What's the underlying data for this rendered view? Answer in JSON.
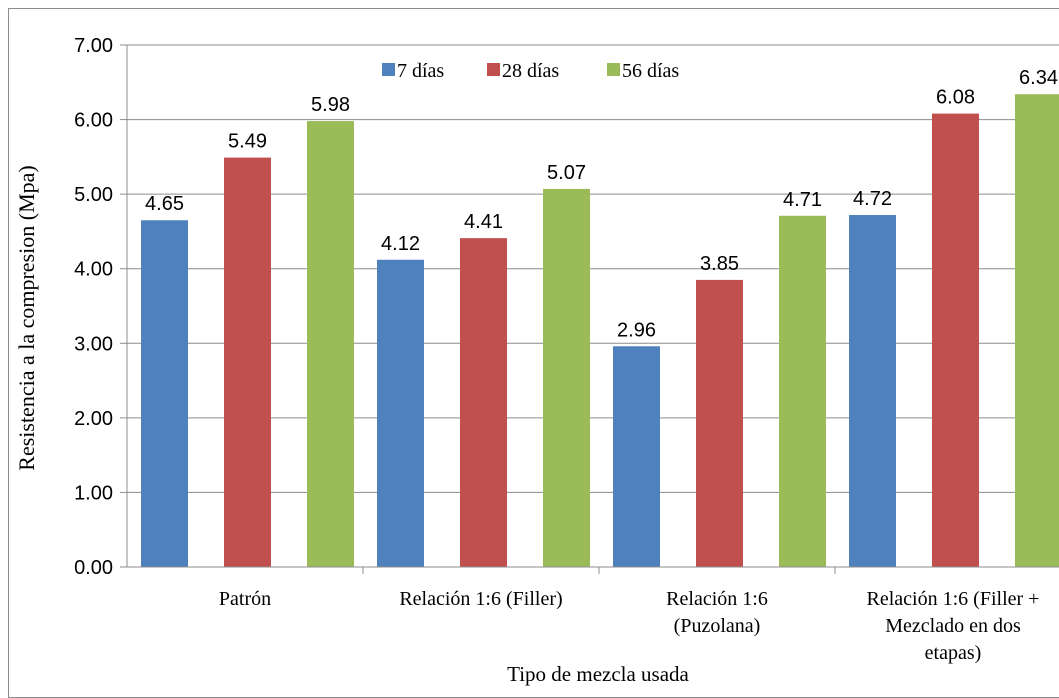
{
  "chart_data": {
    "type": "bar",
    "title": "",
    "xlabel": "Tipo de mezcla usada",
    "ylabel": "Resistencia a la compresion (Mpa)",
    "ylim": [
      0,
      7
    ],
    "yticks": [
      "0.00",
      "1.00",
      "2.00",
      "3.00",
      "4.00",
      "5.00",
      "6.00",
      "7.00"
    ],
    "grid": true,
    "legend_position": "top",
    "categories": [
      [
        "Patrón"
      ],
      [
        "Relación 1:6 (Filler)"
      ],
      [
        "Relación 1:6",
        "(Puzolana)"
      ],
      [
        "Relación 1:6 (Filler +",
        "Mezclado en dos",
        "etapas)"
      ]
    ],
    "series": [
      {
        "name": "7 días",
        "color": "#4f81bd",
        "values": [
          4.65,
          4.12,
          2.96,
          4.72
        ],
        "labels": [
          "4.65",
          "4.12",
          "2.96",
          "4.72"
        ]
      },
      {
        "name": "28 días",
        "color": "#c0504d",
        "values": [
          5.49,
          4.41,
          3.85,
          6.08
        ],
        "labels": [
          "5.49",
          "4.41",
          "3.85",
          "6.08"
        ]
      },
      {
        "name": "56 días",
        "color": "#9bbb59",
        "values": [
          5.98,
          5.07,
          4.71,
          6.34
        ],
        "labels": [
          "5.98",
          "5.07",
          "4.71",
          "6.34"
        ]
      }
    ]
  }
}
